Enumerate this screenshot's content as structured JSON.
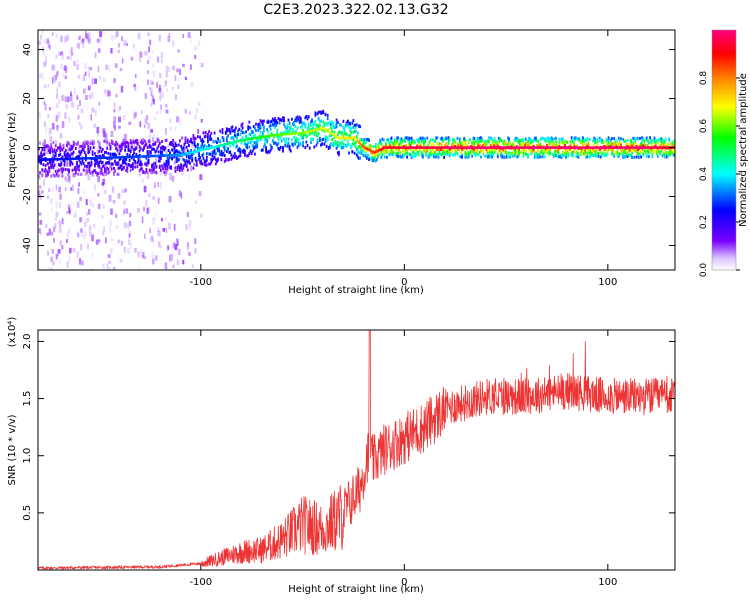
{
  "figure": {
    "title": "C2E3.2023.322.02.13.G32"
  },
  "chart_data": [
    {
      "type": "heatmap",
      "xlabel": "Height of straight line (km)",
      "ylabel": "Frequency (Hz)",
      "xlim": [
        -180,
        133
      ],
      "ylim": [
        -50,
        48
      ],
      "xticks": [
        -100,
        0,
        100
      ],
      "yticks": [
        -40,
        -20,
        0,
        20,
        40
      ],
      "colorbar": {
        "label": "Normalized spectral amplitude",
        "range": [
          0,
          1
        ],
        "ticks": [
          "0.0",
          "0.2",
          "0.4",
          "0.6",
          "0.8"
        ],
        "colormap": [
          "#ffffff",
          "#7a00ff",
          "#0000ff",
          "#00ffff",
          "#00ff00",
          "#ffff00",
          "#ff8000",
          "#ff0000",
          "#ff00a0"
        ]
      },
      "ridge": {
        "x": [
          -180,
          -140,
          -110,
          -95,
          -80,
          -65,
          -50,
          -40,
          -33,
          -25,
          -20,
          -15,
          -10,
          0,
          20,
          50,
          80,
          100,
          133
        ],
        "y": [
          -5,
          -4,
          -3,
          0,
          3,
          5,
          6,
          8,
          4,
          4,
          0,
          -2,
          0,
          0,
          0,
          0,
          0,
          0,
          0
        ]
      },
      "ridge_amplitude": {
        "x": [
          -180,
          -120,
          -90,
          -60,
          -40,
          -25,
          -20,
          0,
          50,
          100,
          133
        ],
        "amp": [
          0.25,
          0.3,
          0.45,
          0.6,
          0.65,
          0.7,
          0.85,
          0.95,
          1.0,
          1.0,
          0.95
        ]
      },
      "scatter_region": {
        "x": [
          -180,
          -100
        ],
        "y": [
          -50,
          48
        ]
      }
    },
    {
      "type": "line",
      "xlabel": "Height of straight line (km)",
      "ylabel": "SNR (10 * v/v)",
      "yexponent_label": "(x10⁴)",
      "xlim": [
        -180,
        133
      ],
      "ylim": [
        0,
        2.1
      ],
      "xticks": [
        -100,
        0,
        100
      ],
      "yticks": [
        0.5,
        1.0,
        1.5,
        2.0
      ],
      "ytick_labels": [
        "0.5",
        "1.0",
        "1.5",
        "2.0"
      ],
      "color": "#ee3333",
      "envelope": {
        "x": [
          -180,
          -120,
          -100,
          -90,
          -80,
          -70,
          -60,
          -50,
          -40,
          -30,
          -22,
          -18,
          -15,
          -10,
          -5,
          0,
          10,
          20,
          30,
          40,
          60,
          80,
          100,
          120,
          133
        ],
        "y": [
          0.02,
          0.03,
          0.06,
          0.12,
          0.18,
          0.2,
          0.3,
          0.45,
          0.4,
          0.55,
          0.75,
          1.05,
          1.0,
          1.1,
          1.15,
          1.2,
          1.3,
          1.45,
          1.5,
          1.55,
          1.55,
          1.6,
          1.55,
          1.55,
          1.55
        ]
      },
      "spike": {
        "x": -17,
        "y": 2.1
      }
    }
  ]
}
